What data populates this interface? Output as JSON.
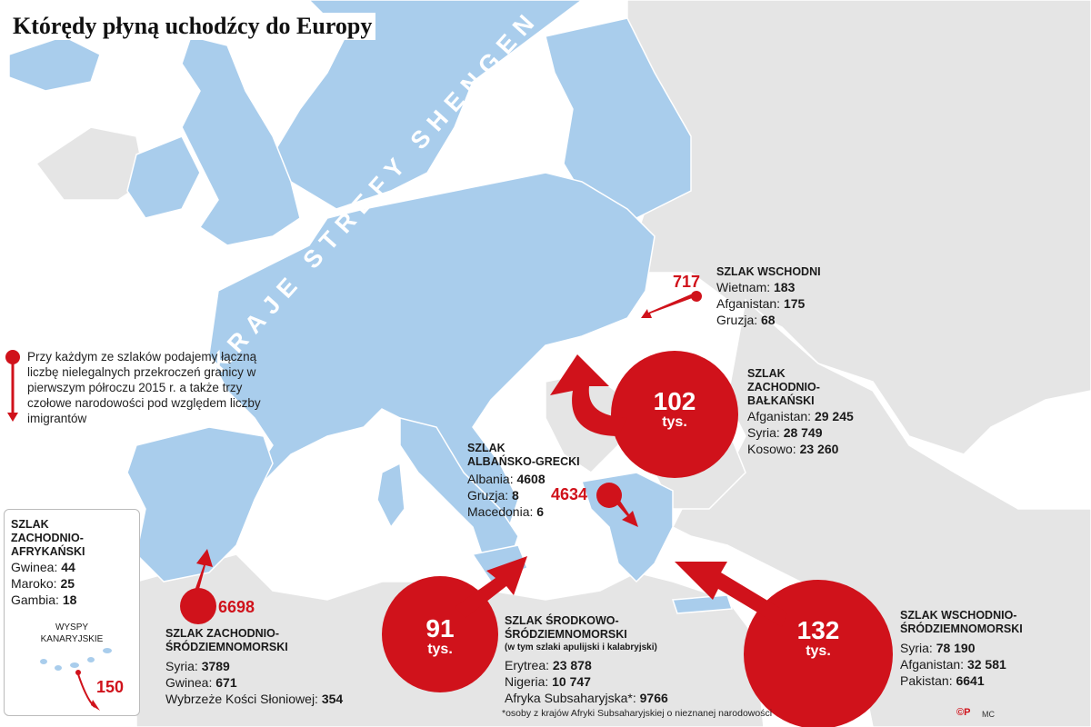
{
  "title": "Którędy płyną uchodźcy do Europy",
  "schengen_label": "KRAJE STREFY SHENGEN",
  "colors": {
    "land_schengen": "#a9cdec",
    "land_other": "#e5e5e5",
    "sea": "#ffffff",
    "route_red": "#d0121b"
  },
  "legend_text": "Przy każdym ze szlaków podajemy łączną liczbę nielegalnych przekroczeń granicy w pierwszym półroczu 2015 r. a także trzy czołowe narodowości pod względem liczby imigrantów",
  "routes": {
    "east": {
      "title": "SZLAK WSCHODNI",
      "total": "717",
      "rows": [
        {
          "label": "Wietnam:",
          "value": "183"
        },
        {
          "label": "Afganistan:",
          "value": "175"
        },
        {
          "label": "Gruzja:",
          "value": "68"
        }
      ]
    },
    "west_balkan": {
      "title1": "SZLAK",
      "title2": "ZACHODNIO-",
      "title3": "BAŁKAŃSKI",
      "total_num": "102",
      "total_unit": "tys.",
      "rows": [
        {
          "label": "Afganistan:",
          "value": "29 245"
        },
        {
          "label": "Syria:",
          "value": "28 749"
        },
        {
          "label": "Kosowo:",
          "value": "23 260"
        }
      ]
    },
    "albanian_greek": {
      "title1": "SZLAK",
      "title2": "ALBAŃSKO-GRECKI",
      "total": "4634",
      "rows": [
        {
          "label": "Albania:",
          "value": "4608"
        },
        {
          "label": "Gruzja:",
          "value": "8"
        },
        {
          "label": "Macedonia:",
          "value": "6"
        }
      ]
    },
    "west_african": {
      "title1": "SZLAK",
      "title2": "ZACHODNIO-",
      "title3": "AFRYKAŃSKI",
      "rows": [
        {
          "label": "Gwinea:",
          "value": "44"
        },
        {
          "label": "Maroko:",
          "value": "25"
        },
        {
          "label": "Gambia:",
          "value": "18"
        }
      ],
      "islands_label1": "WYSPY",
      "islands_label2": "KANARYJSKIE",
      "islands_total": "150"
    },
    "west_med": {
      "title1": "SZLAK ZACHODNIO-",
      "title2": "ŚRÓDZIEMNOMORSKI",
      "total": "6698",
      "rows": [
        {
          "label": "Syria:",
          "value": "3789"
        },
        {
          "label": "Gwinea:",
          "value": "671"
        },
        {
          "label": "Wybrzeże Kości Słoniowej:",
          "value": "354"
        }
      ]
    },
    "central_med": {
      "title1": "SZLAK ŚRODKOWO-",
      "title2": "ŚRÓDZIEMNOMORSKI",
      "subtitle": "(w tym szlaki apulijski i kalabryjski)",
      "total_num": "91",
      "total_unit": "tys.",
      "rows": [
        {
          "label": "Erytrea:",
          "value": "23 878"
        },
        {
          "label": "Nigeria:",
          "value": "10 747"
        },
        {
          "label": "Afryka Subsaharyjska*:",
          "value": "9766"
        }
      ]
    },
    "east_med": {
      "title1": "SZLAK WSCHODNIO-",
      "title2": "ŚRÓDZIEMNOMORSKI",
      "total_num": "132",
      "total_unit": "tys.",
      "rows": [
        {
          "label": "Syria:",
          "value": "78 190"
        },
        {
          "label": "Afganistan:",
          "value": "32 581"
        },
        {
          "label": "Pakistan:",
          "value": "6641"
        }
      ]
    }
  },
  "footnote": "*osoby z krajów Afryki Subsaharyjskiej o nieznanej narodowości",
  "credit": "©P",
  "author": "MC"
}
